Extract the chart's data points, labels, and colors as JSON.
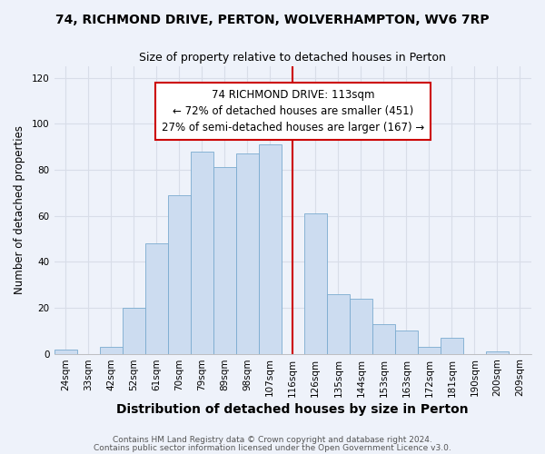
{
  "title": "74, RICHMOND DRIVE, PERTON, WOLVERHAMPTON, WV6 7RP",
  "subtitle": "Size of property relative to detached houses in Perton",
  "xlabel": "Distribution of detached houses by size in Perton",
  "ylabel": "Number of detached properties",
  "bar_labels": [
    "24sqm",
    "33sqm",
    "42sqm",
    "52sqm",
    "61sqm",
    "70sqm",
    "79sqm",
    "89sqm",
    "98sqm",
    "107sqm",
    "116sqm",
    "126sqm",
    "135sqm",
    "144sqm",
    "153sqm",
    "163sqm",
    "172sqm",
    "181sqm",
    "190sqm",
    "200sqm",
    "209sqm"
  ],
  "bar_values": [
    2,
    0,
    3,
    20,
    48,
    69,
    88,
    81,
    87,
    91,
    0,
    61,
    26,
    24,
    13,
    10,
    3,
    7,
    0,
    1,
    0
  ],
  "bar_color": "#ccdcf0",
  "bar_edge_color": "#7aabcf",
  "vline_x_index": 10,
  "vline_color": "#cc0000",
  "ylim": [
    0,
    125
  ],
  "yticks": [
    0,
    20,
    40,
    60,
    80,
    100,
    120
  ],
  "annotation_title": "74 RICHMOND DRIVE: 113sqm",
  "annotation_line1": "← 72% of detached houses are smaller (451)",
  "annotation_line2": "27% of semi-detached houses are larger (167) →",
  "annotation_box_facecolor": "#ffffff",
  "annotation_box_edgecolor": "#cc0000",
  "footer1": "Contains HM Land Registry data © Crown copyright and database right 2024.",
  "footer2": "Contains public sector information licensed under the Open Government Licence v3.0.",
  "background_color": "#eef2fa",
  "grid_color": "#d8dde8",
  "title_fontsize": 10,
  "subtitle_fontsize": 9,
  "xlabel_fontsize": 10,
  "ylabel_fontsize": 8.5,
  "tick_fontsize": 7.5,
  "annotation_fontsize": 8.5,
  "footer_fontsize": 6.5
}
